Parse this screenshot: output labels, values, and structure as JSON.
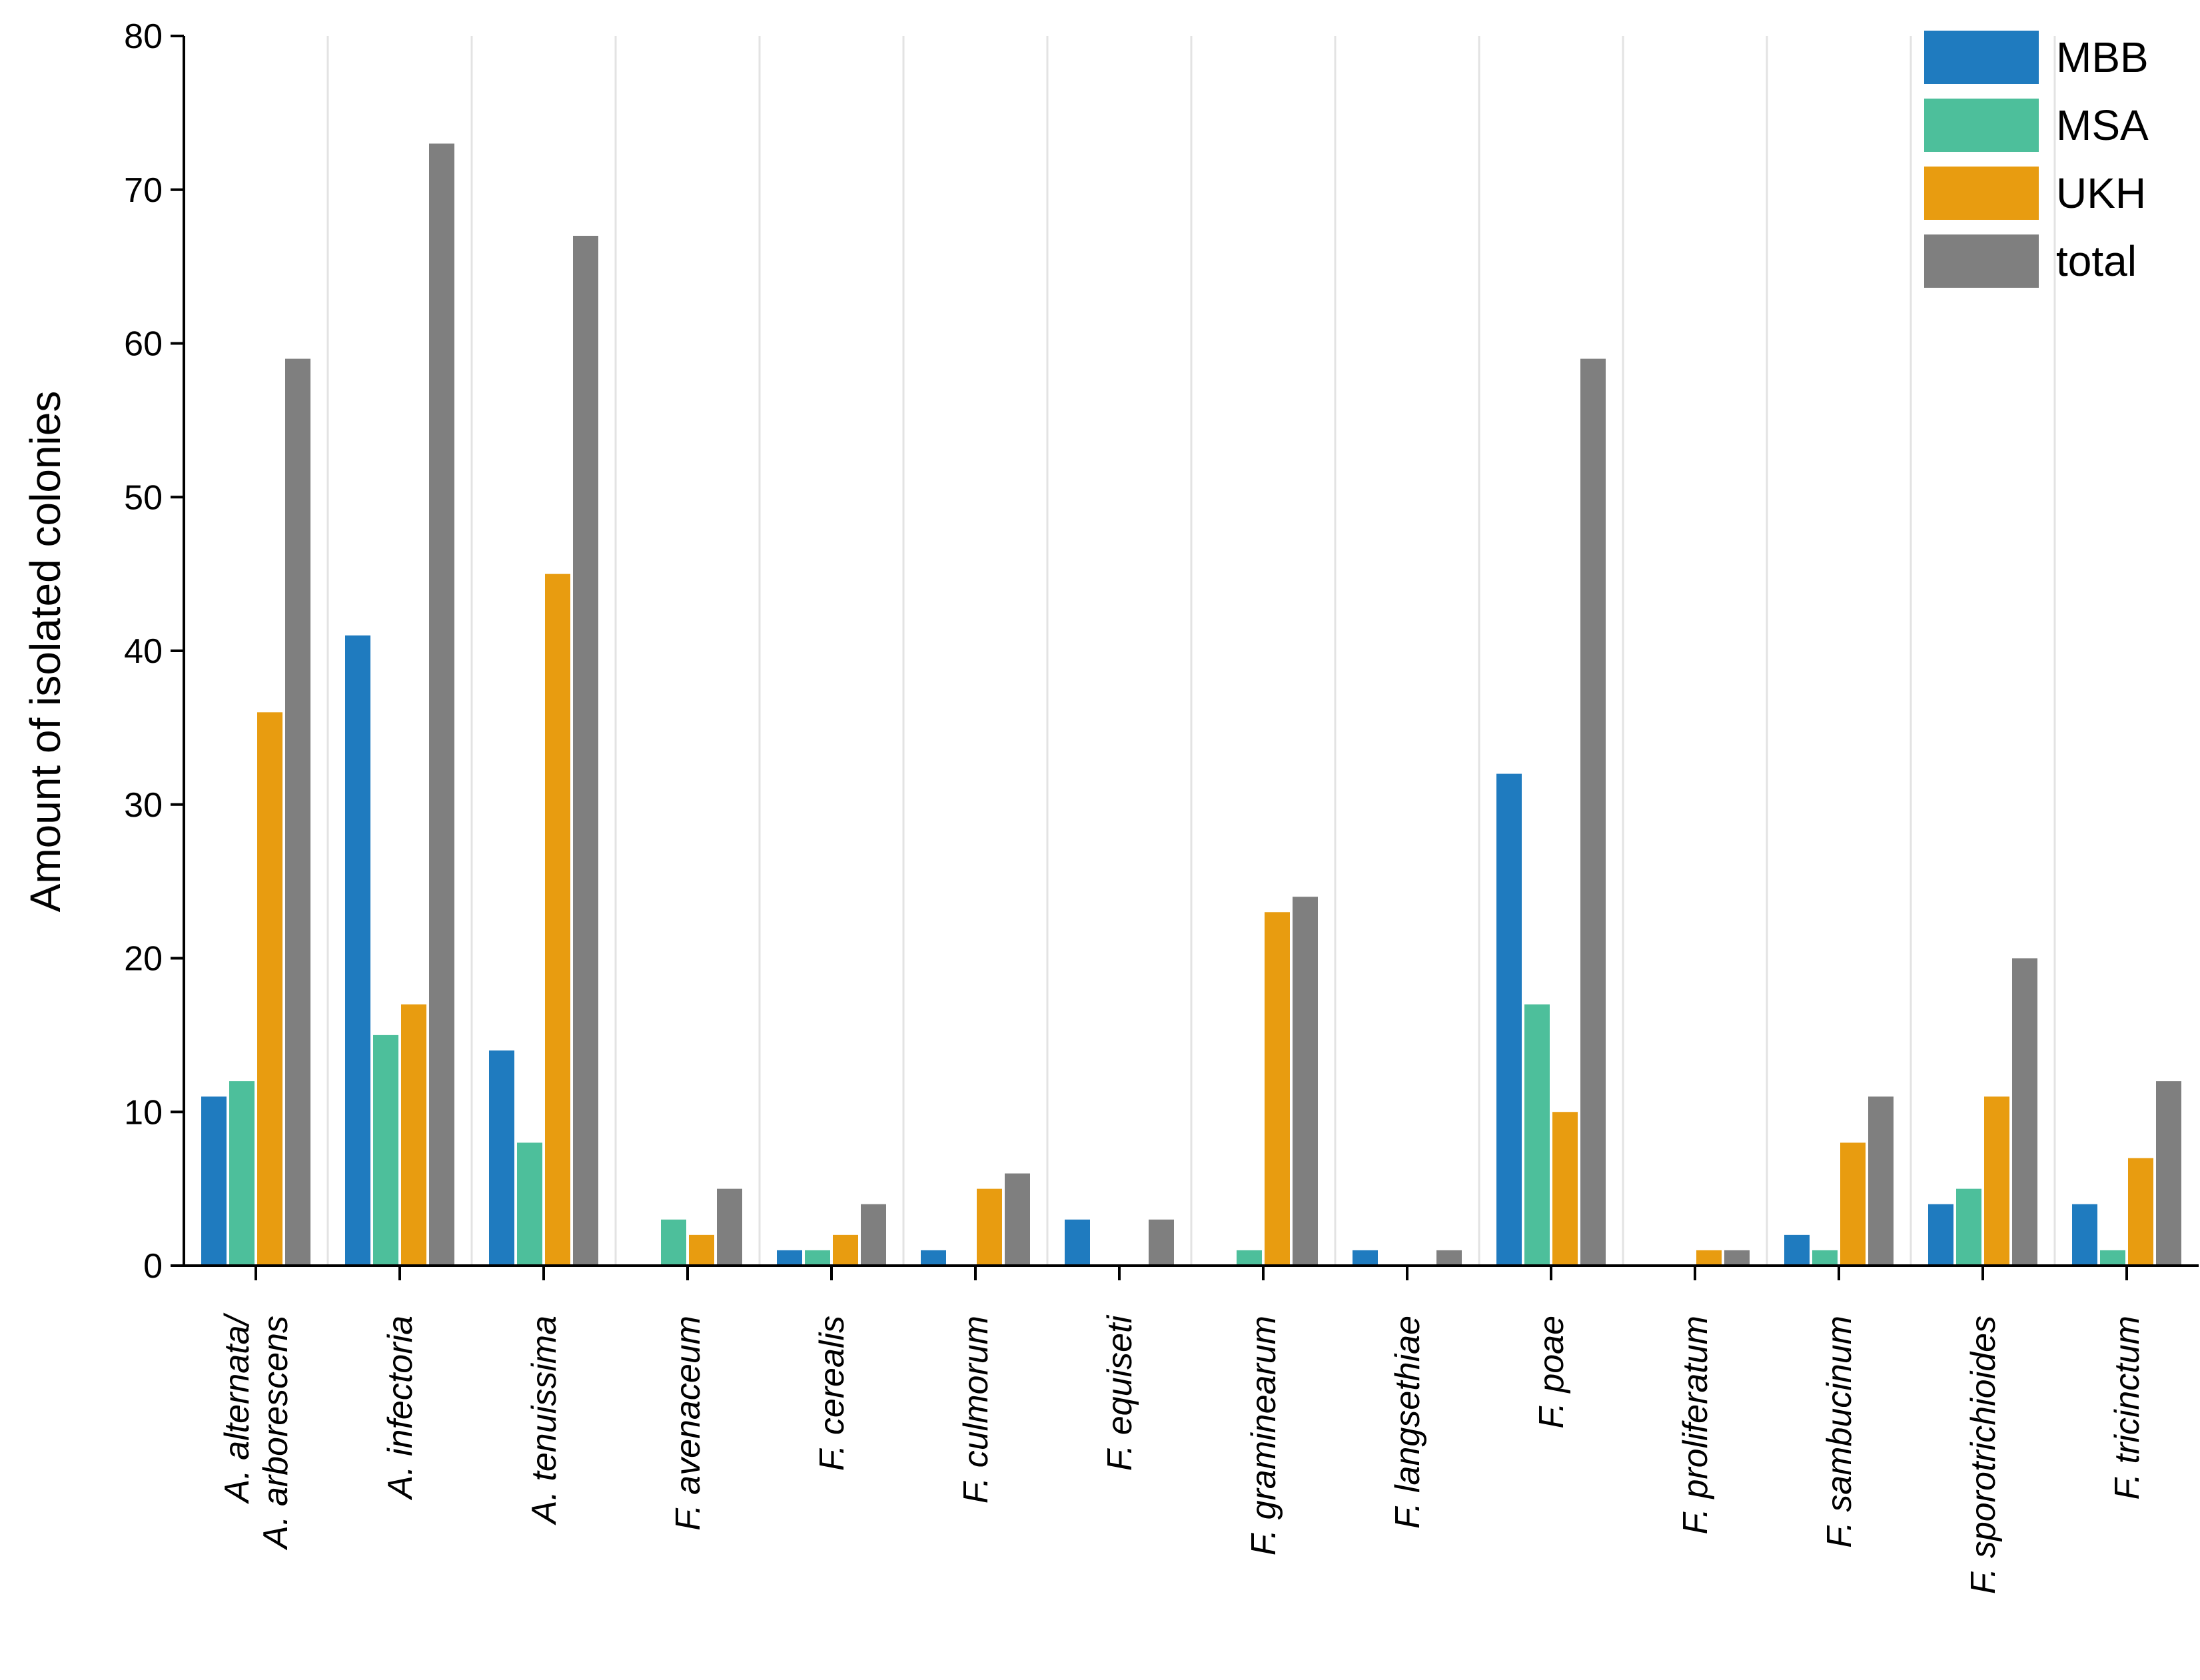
{
  "chart_data": {
    "type": "bar",
    "ylabel": "Amount of isolated colonies",
    "xlabel": "",
    "ylim": [
      0,
      80
    ],
    "yticks": [
      "0",
      "10",
      "20",
      "30",
      "40",
      "50",
      "60",
      "70",
      "80"
    ],
    "grid": "vertical separators between categories",
    "legend_position": "top-right",
    "categories": [
      [
        "A. alternata/",
        "A. arborescens"
      ],
      [
        "A. infectoria"
      ],
      [
        "A. tenuissima"
      ],
      [
        "F. avenaceum"
      ],
      [
        "F. cerealis"
      ],
      [
        "F. culmorum"
      ],
      [
        "F. equiseti"
      ],
      [
        "F. graminearum"
      ],
      [
        "F. langsethiae"
      ],
      [
        "F. poae"
      ],
      [
        "F. proliferatum"
      ],
      [
        "F. sambucinum"
      ],
      [
        "F. sporotrichioides"
      ],
      [
        "F. tricinctum"
      ]
    ],
    "series": [
      {
        "name": "MBB",
        "color": "#1f7bbf",
        "values": [
          11,
          41,
          14,
          0,
          1,
          1,
          3,
          0,
          1,
          32,
          0,
          2,
          4,
          4
        ]
      },
      {
        "name": "MSA",
        "color": "#4dbf9b",
        "values": [
          12,
          15,
          8,
          3,
          1,
          0,
          0,
          1,
          0,
          17,
          0,
          1,
          5,
          1
        ]
      },
      {
        "name": "UKH",
        "color": "#e89c10",
        "values": [
          36,
          17,
          45,
          2,
          2,
          5,
          0,
          23,
          0,
          10,
          1,
          8,
          11,
          7
        ]
      },
      {
        "name": "total",
        "color": "#7f7f7f",
        "values": [
          59,
          73,
          67,
          5,
          4,
          6,
          3,
          24,
          1,
          59,
          1,
          11,
          20,
          12
        ]
      }
    ]
  }
}
